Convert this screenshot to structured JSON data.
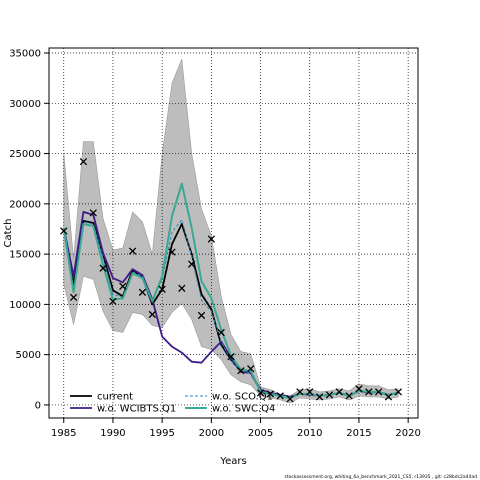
{
  "chart_data": {
    "type": "line",
    "xlabel": "Years",
    "ylabel": "Catch",
    "xlim": [
      1983.5,
      2021
    ],
    "ylim": [
      -1300,
      35500
    ],
    "x_ticks": [
      1985,
      1990,
      1995,
      2000,
      2005,
      2010,
      2015,
      2020
    ],
    "y_ticks": [
      0,
      5000,
      10000,
      15000,
      20000,
      25000,
      30000,
      35000
    ],
    "grid": true,
    "legend_position": "bottom-left",
    "footnote": "stockassessment.org, whiting_6a_benchmark_2021_CS5, r13935 , git: c28bdc2a44ad",
    "years": [
      1985,
      1986,
      1987,
      1988,
      1989,
      1990,
      1991,
      1992,
      1993,
      1994,
      1995,
      1996,
      1997,
      1998,
      1999,
      2000,
      2001,
      2002,
      2003,
      2004,
      2005,
      2006,
      2007,
      2008,
      2009,
      2010,
      2011,
      2012,
      2013,
      2014,
      2015,
      2016,
      2017,
      2018,
      2019
    ],
    "observed": [
      17300,
      10700,
      24200,
      19100,
      13600,
      10300,
      11800,
      15300,
      11200,
      9000,
      11500,
      15200,
      11600,
      14000,
      8900,
      16500,
      7200,
      4800,
      3400,
      3600,
      1200,
      1100,
      900,
      600,
      1300,
      1300,
      800,
      1000,
      1300,
      900,
      1600,
      1300,
      1300,
      800,
      1300
    ],
    "ci_band": {
      "upper": [
        25000,
        14500,
        26200,
        26200,
        18500,
        15400,
        15600,
        19200,
        18200,
        15000,
        25000,
        32000,
        34400,
        25000,
        19500,
        16800,
        10800,
        7000,
        5300,
        5100,
        1800,
        1500,
        1100,
        900,
        1500,
        1600,
        1300,
        1400,
        1600,
        1400,
        2100,
        1900,
        1900,
        1500,
        1600
      ],
      "lower": [
        12000,
        8000,
        12800,
        12500,
        9300,
        7400,
        7200,
        9200,
        9000,
        7900,
        7700,
        9200,
        10100,
        8500,
        5800,
        5500,
        4500,
        3000,
        2300,
        2000,
        900,
        700,
        500,
        200,
        700,
        600,
        500,
        600,
        800,
        500,
        900,
        800,
        800,
        600,
        800
      ]
    },
    "series": [
      {
        "name": "current",
        "color": "#000000",
        "dash": "solid",
        "values": [
          17500,
          12000,
          18300,
          18100,
          14900,
          11400,
          10800,
          13400,
          12700,
          10000,
          11500,
          16000,
          18000,
          15000,
          11000,
          9500,
          6000,
          4500,
          3300,
          3200,
          1400,
          1100,
          900,
          700,
          1100,
          1100,
          900,
          1000,
          1200,
          900,
          1400,
          1300,
          1300,
          1000,
          1200
        ]
      },
      {
        "name": "w.o. WCIBTS.Q1",
        "color": "#3f1a8a",
        "dash": "solid",
        "values": [
          17600,
          12800,
          19200,
          18900,
          15100,
          12600,
          12200,
          13500,
          12900,
          10500,
          6800,
          5800,
          5200,
          4300,
          4200,
          5300,
          6300,
          4700,
          3300,
          3200,
          1500,
          1200,
          1000,
          800,
          1100,
          1000,
          900,
          1000,
          1200,
          900,
          1400,
          1200,
          1300,
          1000,
          1200
        ]
      },
      {
        "name": "w.o. SCO.Q1",
        "color": "#2f86b8",
        "dash": "dashed",
        "values": [
          17400,
          11200,
          18200,
          18000,
          14600,
          11000,
          10700,
          13200,
          12800,
          10400,
          12500,
          17200,
          18400,
          14800,
          10400,
          9300,
          6300,
          4400,
          3300,
          3200,
          1300,
          1100,
          900,
          700,
          1100,
          1100,
          900,
          1000,
          1200,
          900,
          1400,
          1200,
          1300,
          1000,
          1200
        ]
      },
      {
        "name": "w.o. SWC.Q4",
        "color": "#3aa892",
        "dash": "solid",
        "values": [
          17600,
          11200,
          18000,
          17800,
          13900,
          10500,
          10600,
          13100,
          12600,
          10300,
          12800,
          18800,
          22000,
          17600,
          12300,
          10600,
          7500,
          4900,
          3500,
          3400,
          1300,
          1100,
          900,
          700,
          1100,
          1100,
          900,
          1000,
          1200,
          900,
          1400,
          1300,
          1300,
          1000,
          1200
        ]
      }
    ]
  }
}
